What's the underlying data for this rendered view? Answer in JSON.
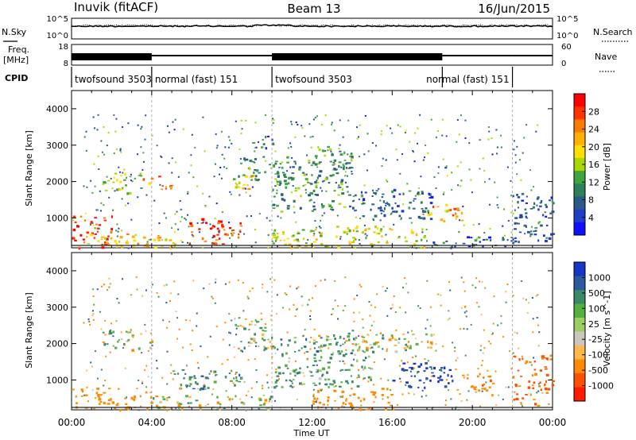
{
  "header": {
    "station": "Inuvik (fitACF)",
    "beam": "Beam 13",
    "date": "16/Jun/2015"
  },
  "strip_nsky": {
    "left_label": "N.Sky",
    "right_label": "N.Search",
    "left_ticks": [
      "10^5",
      "10^0"
    ],
    "right_ticks": [
      "10^5",
      "10^0"
    ]
  },
  "strip_freq": {
    "left_label_1": "Freq.",
    "left_label_2": "[MHz]",
    "right_label": "Nave",
    "left_ticks": [
      "18",
      "8"
    ],
    "right_ticks": [
      "60",
      "0"
    ]
  },
  "cpid": {
    "label": "CPID",
    "segments": [
      {
        "name": "twofsound 3503",
        "start": 0,
        "end": 4
      },
      {
        "name": "normal (fast) 151",
        "start": 4,
        "end": 10
      },
      {
        "name": "twofsound 3503",
        "start": 10,
        "end": 18.5
      },
      {
        "name": "normal (fast) 151",
        "start": 18.5,
        "end": 22
      }
    ]
  },
  "panels": {
    "ylabel": "Slant Range [km]",
    "yticks": [
      "4000",
      "3000",
      "2000",
      "1000"
    ],
    "xlabel": "Time UT",
    "xticks": [
      "00:00",
      "04:00",
      "08:00",
      "12:00",
      "16:00",
      "20:00",
      "00:00"
    ]
  },
  "power_scale": {
    "label": "Power [dB]",
    "ticks": [
      "28",
      "24",
      "20",
      "16",
      "12",
      "8",
      "4"
    ],
    "colors": [
      "#ff0000",
      "#ff3300",
      "#ff7a00",
      "#ffb000",
      "#ffe000",
      "#a8d800",
      "#3fa63f",
      "#2f7f5a",
      "#285a8a",
      "#1f3fc8",
      "#1010ff"
    ]
  },
  "velocity_scale": {
    "label": "Velocity [m s^-1]",
    "ticks": [
      "1000",
      "500",
      "100",
      "25",
      "-25",
      "-100",
      "-500",
      "-1000"
    ],
    "colors": [
      "#1535c8",
      "#2a5aa0",
      "#3a8a6a",
      "#55b040",
      "#9ad060",
      "#c8c8c0",
      "#ffb84a",
      "#ff8a00",
      "#ff5000",
      "#ff1a00"
    ]
  },
  "chart_data": [
    {
      "type": "heatmap",
      "title": "Power",
      "xlabel": "Time UT",
      "ylabel": "Slant Range [km]",
      "xlim": [
        0,
        24
      ],
      "ylim": [
        180,
        4500
      ],
      "colorbar_label": "Power [dB]",
      "colorbar_range": [
        3,
        30
      ],
      "features": [
        {
          "t0": 0.0,
          "t1": 2.0,
          "r0": 200,
          "r1": 1100,
          "value": 27
        },
        {
          "t0": 0.5,
          "t1": 4.0,
          "r0": 200,
          "r1": 600,
          "value": 22
        },
        {
          "t0": 4.0,
          "t1": 5.5,
          "r0": 200,
          "r1": 700,
          "value": 20
        },
        {
          "t0": 5.8,
          "t1": 8.5,
          "r0": 250,
          "r1": 1000,
          "value": 28
        },
        {
          "t0": 1.5,
          "t1": 3.5,
          "r0": 1700,
          "r1": 2300,
          "value": 16
        },
        {
          "t0": 3.5,
          "t1": 5.0,
          "r0": 1800,
          "r1": 2200,
          "value": 24
        },
        {
          "t0": 7.5,
          "t1": 9.0,
          "r0": 1800,
          "r1": 2200,
          "value": 20
        },
        {
          "t0": 8.0,
          "t1": 11.0,
          "r0": 2000,
          "r1": 2700,
          "value": 12
        },
        {
          "t0": 9.0,
          "t1": 10.0,
          "r0": 2900,
          "r1": 3300,
          "value": 8
        },
        {
          "t0": 10.0,
          "t1": 14.0,
          "r0": 1200,
          "r1": 2600,
          "value": 12
        },
        {
          "t0": 12.0,
          "t1": 14.0,
          "r0": 2300,
          "r1": 3000,
          "value": 12
        },
        {
          "t0": 14.0,
          "t1": 18.0,
          "r0": 1000,
          "r1": 1800,
          "value": 8
        },
        {
          "t0": 17.5,
          "t1": 19.5,
          "r0": 900,
          "r1": 1400,
          "value": 22
        },
        {
          "t0": 10.0,
          "t1": 18.0,
          "r0": 200,
          "r1": 800,
          "value": 18
        },
        {
          "t0": 18.0,
          "t1": 22.0,
          "r0": 200,
          "r1": 500,
          "value": 8
        },
        {
          "t0": 22.0,
          "t1": 24.0,
          "r0": 300,
          "r1": 1700,
          "value": 8
        }
      ]
    },
    {
      "type": "heatmap",
      "title": "Velocity",
      "xlabel": "Time UT",
      "ylabel": "Slant Range [km]",
      "xlim": [
        0,
        24
      ],
      "ylim": [
        180,
        4500
      ],
      "colorbar_label": "Velocity [m s^-1]",
      "colorbar_range": [
        -1000,
        1000
      ],
      "features": [
        {
          "t0": 0.0,
          "t1": 4.0,
          "r0": 200,
          "r1": 800,
          "value": -300
        },
        {
          "t0": 1.5,
          "t1": 4.0,
          "r0": 1800,
          "r1": 2400,
          "value": 0
        },
        {
          "t0": 4.0,
          "t1": 10.0,
          "r0": 200,
          "r1": 600,
          "value": 0
        },
        {
          "t0": 5.0,
          "t1": 8.5,
          "r0": 700,
          "r1": 1300,
          "value": 200
        },
        {
          "t0": 8.0,
          "t1": 10.0,
          "r0": 1800,
          "r1": 2800,
          "value": 0
        },
        {
          "t0": 10.0,
          "t1": 15.0,
          "r0": 800,
          "r1": 2200,
          "value": 150
        },
        {
          "t0": 12.0,
          "t1": 18.0,
          "r0": 1800,
          "r1": 2300,
          "value": 0
        },
        {
          "t0": 16.0,
          "t1": 19.0,
          "r0": 800,
          "r1": 1500,
          "value": 800
        },
        {
          "t0": 12.0,
          "t1": 16.0,
          "r0": 200,
          "r1": 800,
          "value": -300
        },
        {
          "t0": 19.0,
          "t1": 21.0,
          "r0": 600,
          "r1": 1200,
          "value": -400
        },
        {
          "t0": 22.0,
          "t1": 24.0,
          "r0": 300,
          "r1": 1700,
          "value": -500
        }
      ]
    }
  ]
}
